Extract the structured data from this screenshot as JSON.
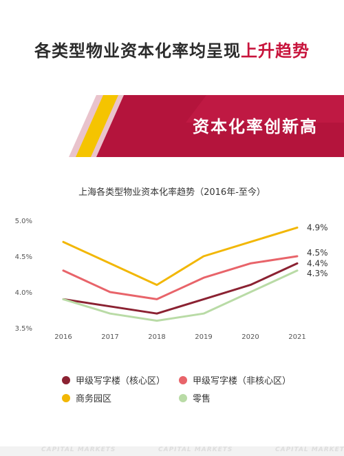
{
  "headline": {
    "main": "各类型物业资本化率均呈现",
    "accent": "上升趋势"
  },
  "banner": {
    "title": "资本化率创新高"
  },
  "footer": {
    "text": "CAPITAL MARKETS"
  },
  "colors": {
    "accent": "#c8143c",
    "banner_dark": "#b0123a",
    "banner_light": "#e6b4c0",
    "stripe": "#f5c400"
  },
  "chart_data": {
    "type": "line",
    "title": "上海各类型物业资本化率趋势（2016年-至今）",
    "x": [
      "2016",
      "2017",
      "2018",
      "2019",
      "2020",
      "2021"
    ],
    "y_ticks": [
      "3.5%",
      "4.0%",
      "4.5%",
      "5.0%"
    ],
    "ylim": [
      3.5,
      5.0
    ],
    "grid": false,
    "legend_position": "bottom",
    "series": [
      {
        "name": "甲级写字楼（核心区）",
        "color": "#8b2232",
        "values": [
          3.9,
          3.8,
          3.7,
          3.9,
          4.1,
          4.4
        ],
        "end_label": "4.4%"
      },
      {
        "name": "甲级写字楼（非核心区）",
        "color": "#e8646a",
        "values": [
          4.3,
          4.0,
          3.9,
          4.2,
          4.4,
          4.5
        ],
        "end_label": "4.5%"
      },
      {
        "name": "商务园区",
        "color": "#f2b705",
        "values": [
          4.7,
          4.4,
          4.1,
          4.5,
          4.7,
          4.9
        ],
        "end_label": "4.9%"
      },
      {
        "name": "零售",
        "color": "#b9dba6",
        "values": [
          3.9,
          3.7,
          3.6,
          3.7,
          4.0,
          4.3
        ],
        "end_label": "4.3%"
      }
    ]
  }
}
